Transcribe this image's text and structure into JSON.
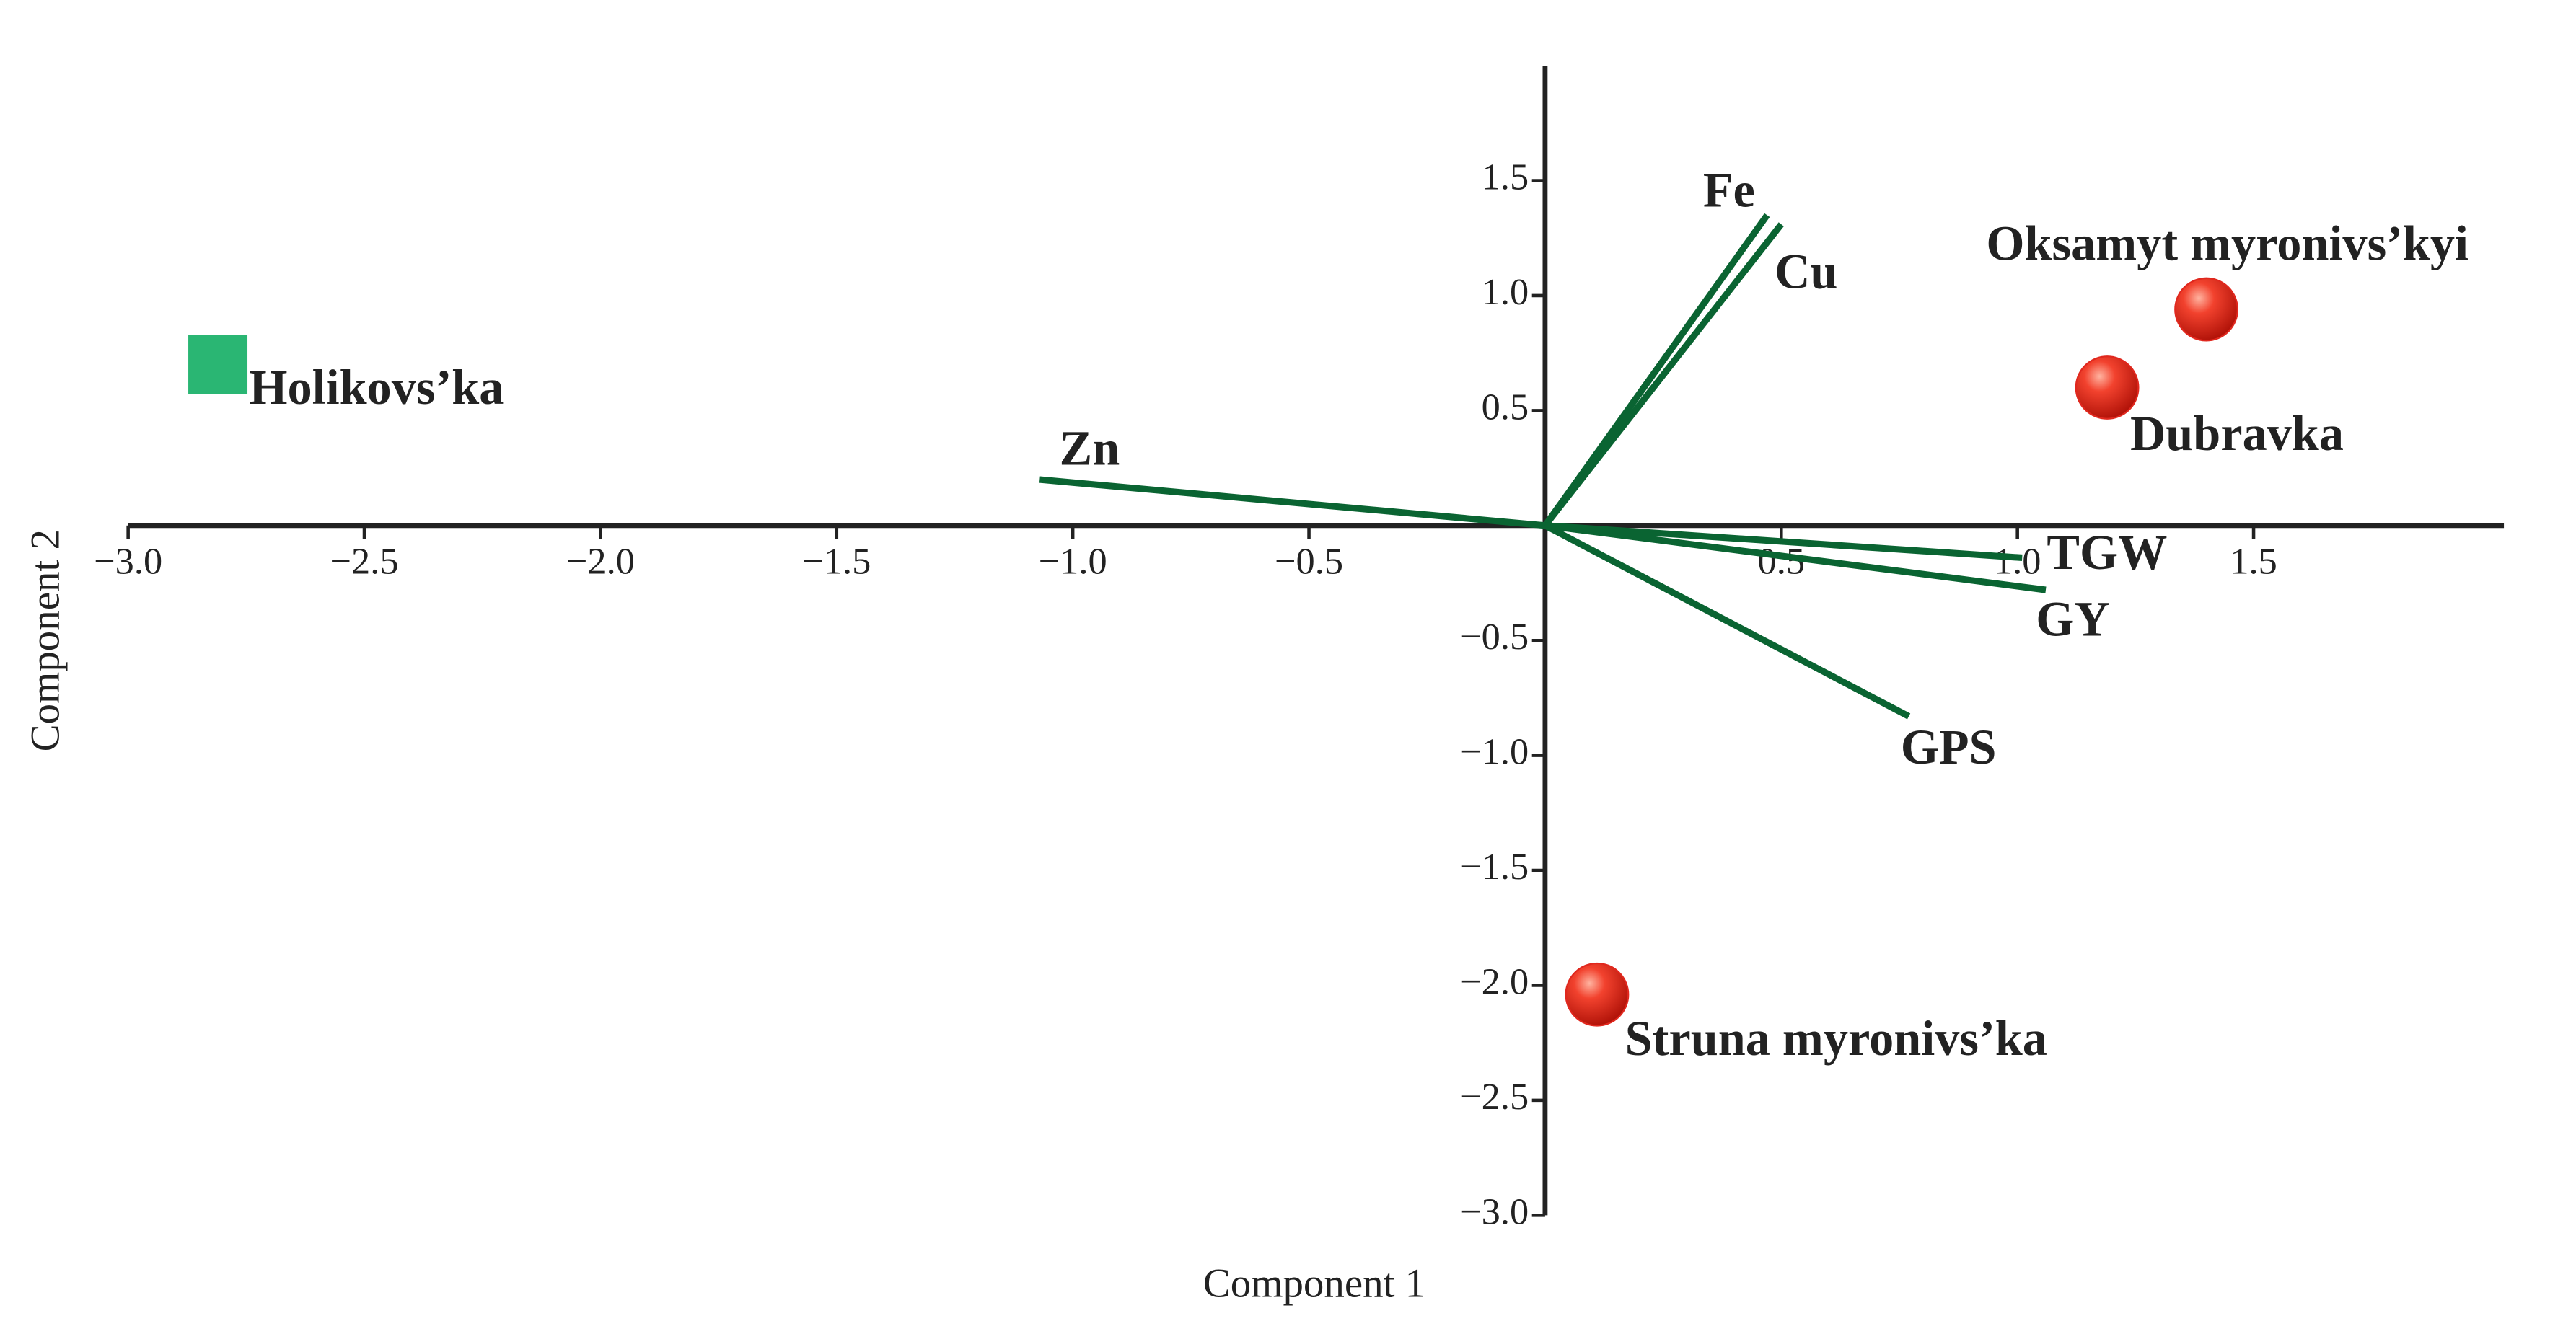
{
  "chart_data": {
    "type": "biplot",
    "x_label": "Component 1",
    "y_label": "Component 2",
    "xlim": [
      -3.0,
      2.03
    ],
    "ylim": [
      -3.0,
      2.0
    ],
    "xticks": [
      {
        "value": -3.0,
        "label": "−3.0"
      },
      {
        "value": -2.5,
        "label": "−2.5"
      },
      {
        "value": -2.0,
        "label": "−2.0"
      },
      {
        "value": -1.5,
        "label": "−1.5"
      },
      {
        "value": -1.0,
        "label": "−1.0"
      },
      {
        "value": -0.5,
        "label": "−0.5"
      },
      0.5,
      {
        "value": 1.0,
        "label": "1.0"
      },
      1.5
    ],
    "yticks": [
      1.5,
      {
        "value": 1.0,
        "label": "1.0"
      },
      0.5,
      {
        "value": -0.5,
        "label": "−0.5"
      },
      {
        "value": -1.0,
        "label": "−1.0"
      },
      {
        "value": -1.5,
        "label": "−1.5"
      },
      {
        "value": -2.0,
        "label": "−2.0"
      },
      {
        "value": -2.5,
        "label": "−2.5"
      },
      {
        "value": -3.0,
        "label": "−3.0"
      }
    ],
    "points": [
      {
        "label": "Holikovs’ka",
        "x": -2.81,
        "y": 0.7,
        "marker": "square",
        "color": "#2ab673"
      },
      {
        "label": "Oksamyt myronivs’kyi",
        "x": 1.4,
        "y": 0.94,
        "marker": "circle",
        "color": "#e0281e"
      },
      {
        "label": "Dubravka",
        "x": 1.19,
        "y": 0.6,
        "marker": "circle",
        "color": "#e0281e"
      },
      {
        "label": "Struna myronivs’ka",
        "x": 0.11,
        "y": -2.04,
        "marker": "circle",
        "color": "#e0281e"
      }
    ],
    "loading_color": "#0a6432",
    "loadings": [
      {
        "label": "Fe",
        "x": 0.47,
        "y": 1.35
      },
      {
        "label": "Cu",
        "x": 0.5,
        "y": 1.31
      },
      {
        "label": "Zn",
        "x": -1.07,
        "y": 0.2
      },
      {
        "label": "TGW",
        "x": 1.01,
        "y": -0.14
      },
      {
        "label": "GY",
        "x": 1.06,
        "y": -0.28
      },
      {
        "label": "GPS",
        "x": 0.77,
        "y": -0.83
      }
    ]
  }
}
